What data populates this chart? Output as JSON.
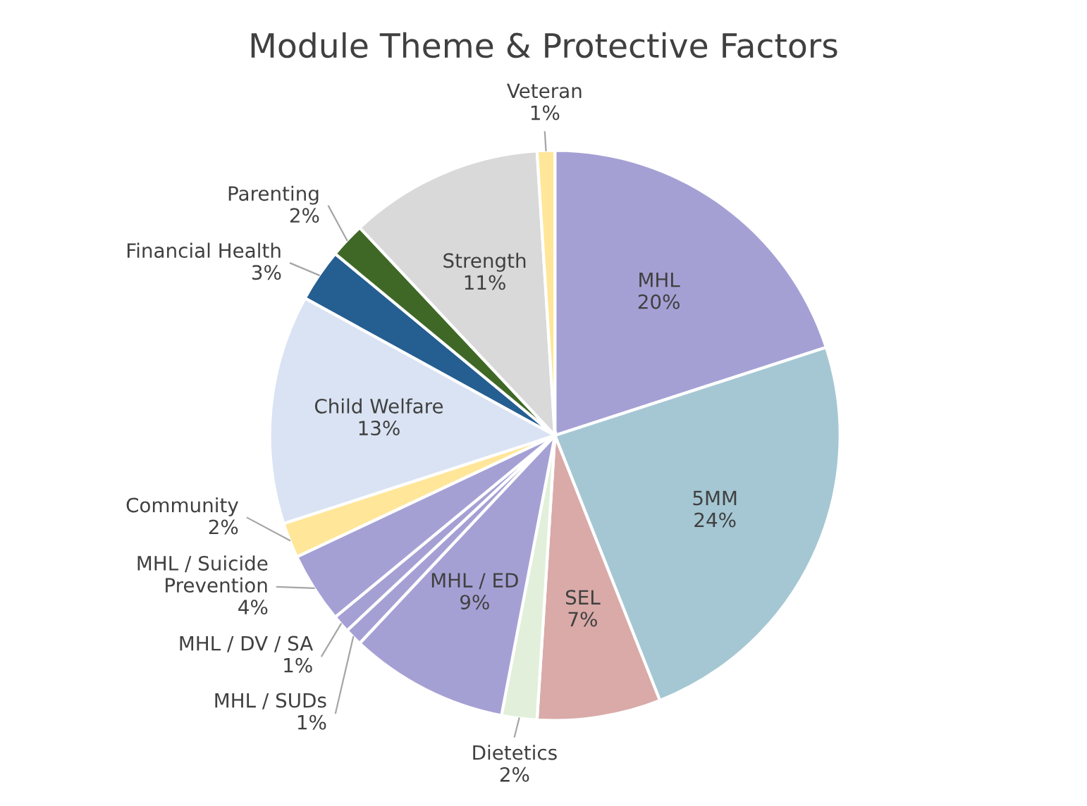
{
  "chart_data": {
    "type": "pie",
    "title": "Module Theme & Protective Factors",
    "categories": [
      "MHL",
      "5MM",
      "SEL",
      "Dietetics",
      "MHL / ED",
      "MHL / SUDs",
      "MHL / DV / SA",
      "MHL / Suicide Prevention",
      "Community",
      "Child Welfare",
      "Financial Health",
      "Parenting",
      "Strength",
      "Veteran"
    ],
    "values": [
      20,
      24,
      7,
      2,
      9,
      1,
      1,
      4,
      2,
      13,
      3,
      2,
      11,
      1
    ],
    "colors": [
      "#a5a0d4",
      "#a5c7d3",
      "#d9aaa8",
      "#e2efda",
      "#a5a0d4",
      "#a5a0d4",
      "#a5a0d4",
      "#a5a0d4",
      "#ffe699",
      "#dae3f3",
      "#255e91",
      "#3f6827",
      "#d9d9d9",
      "#ffe699"
    ],
    "value_labels": [
      "20%",
      "24%",
      "7%",
      "2%",
      "9%",
      "1%",
      "1%",
      "4%",
      "2%",
      "13%",
      "3%",
      "2%",
      "11%",
      "1%"
    ]
  }
}
